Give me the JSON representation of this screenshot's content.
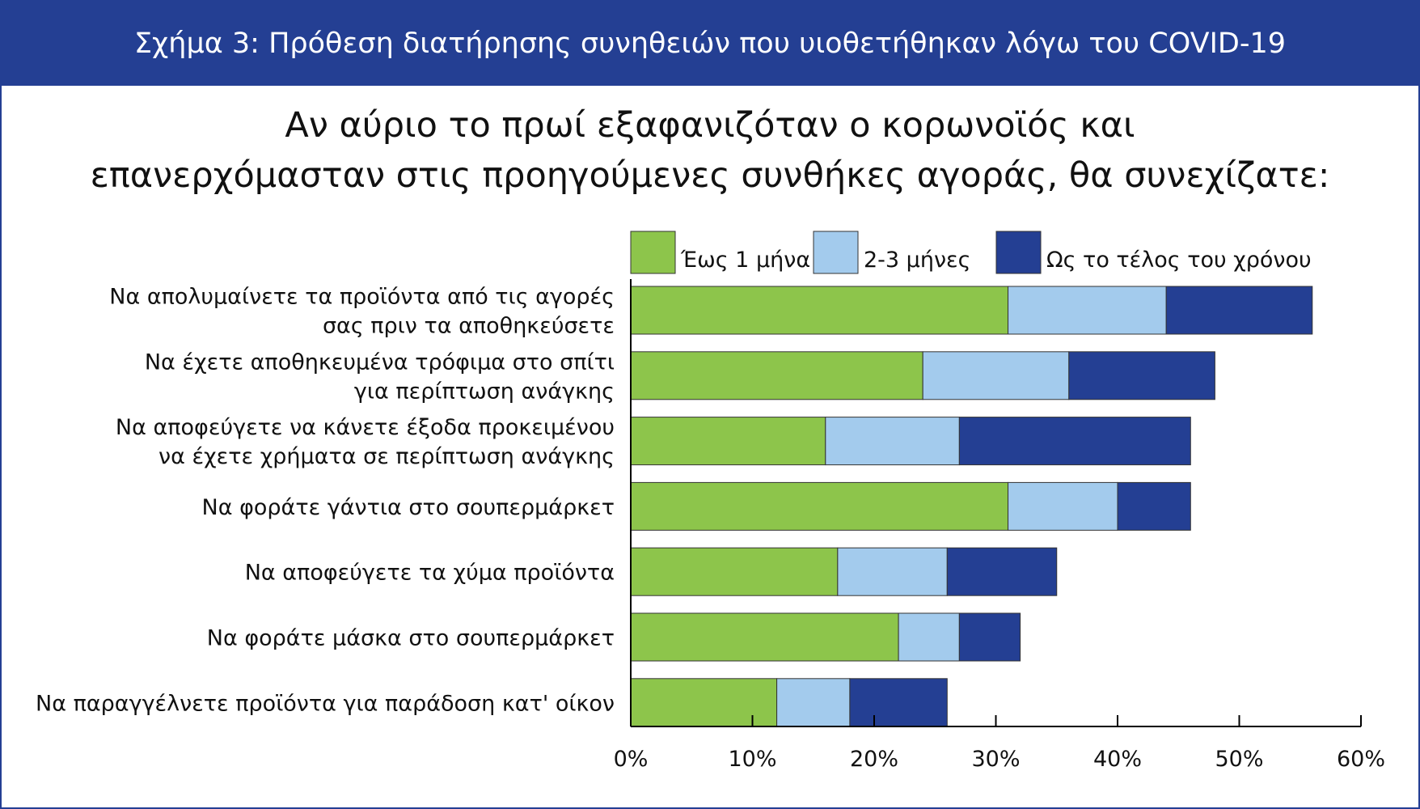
{
  "header": {
    "title": "Σχήμα 3: Πρόθεση διατήρησης συνηθειών που υιοθετήθηκαν λόγω του COVID-19"
  },
  "chart_data": {
    "type": "bar",
    "orientation": "horizontal",
    "stacked": true,
    "title": [
      "Αν αύριο το πρωί εξαφανιζόταν ο κορωνοϊός και",
      "επανερχόμασταν στις  προηγούμενες συνθήκες αγοράς, θα συνεχίζατε:"
    ],
    "categories": [
      [
        "Να απολυμαίνετε τα προϊόντα από τις αγορές",
        "σας πριν τα αποθηκεύσετε"
      ],
      [
        "Να έχετε αποθηκευμένα τρόφιμα στο σπίτι",
        "για περίπτωση ανάγκης"
      ],
      [
        "Να αποφεύγετε να κάνετε έξοδα προκειμένου",
        "να έχετε χρήματα σε περίπτωση ανάγκης"
      ],
      [
        "Να φοράτε γάντια στο σουπερμάρκετ"
      ],
      [
        "Να αποφεύγετε τα χύμα προϊόντα"
      ],
      [
        "Να φοράτε μάσκα στο σουπερμάρκετ"
      ],
      [
        "Να παραγγέλνετε προϊόντα για παράδοση κατ' οίκον"
      ]
    ],
    "series": [
      {
        "name": "Έως 1 μήνα",
        "color": "#8dc54b",
        "values": [
          31,
          24,
          16,
          31,
          17,
          22,
          12
        ]
      },
      {
        "name": "2-3 μήνες",
        "color": "#a3cbed",
        "values": [
          13,
          12,
          11,
          9,
          9,
          5,
          6
        ]
      },
      {
        "name": "Ως το τέλος του χρόνου",
        "color": "#243f93",
        "values": [
          12,
          12,
          19,
          6,
          9,
          5,
          8
        ]
      }
    ],
    "xlim": [
      0,
      60
    ],
    "xticks": [
      0,
      10,
      20,
      30,
      40,
      50,
      60
    ],
    "xtick_labels": [
      "0%",
      "10%",
      "20%",
      "30%",
      "40%",
      "50%",
      "60%"
    ],
    "legend_position": "top",
    "grid": false
  }
}
